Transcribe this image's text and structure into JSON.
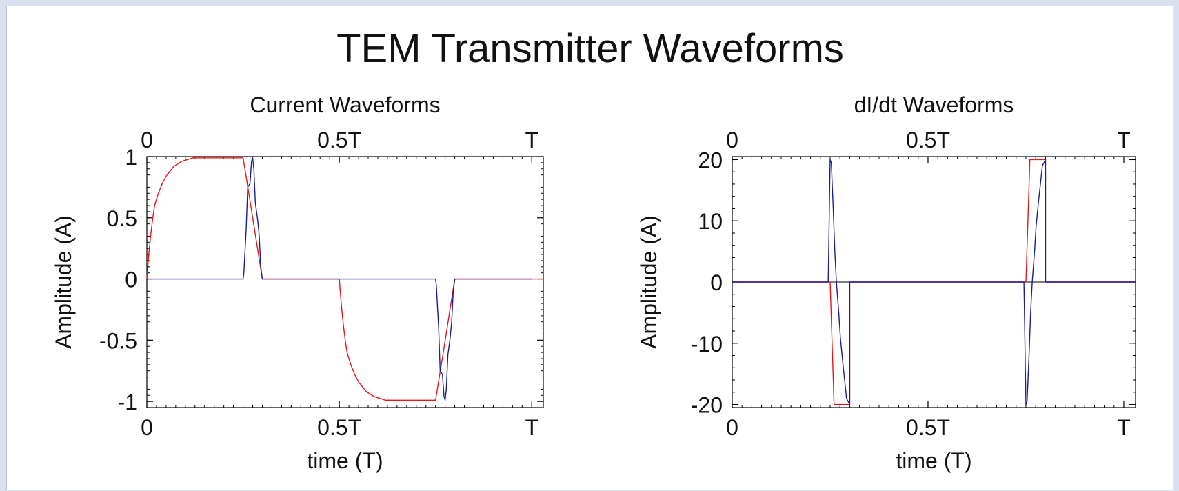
{
  "figure_title": "TEM Transmitter Waveforms",
  "colors": {
    "series_red": "#e8141b",
    "series_blue": "#1c1f8f",
    "axis": "#000000",
    "background": "#ffffff",
    "page": "#d9e1ee"
  },
  "chart_data": [
    {
      "type": "line",
      "title": "Current Waveforms",
      "xlabel": "time (T)",
      "ylabel": "Amplitude (A)",
      "xlim": [
        0,
        1.03
      ],
      "ylim": [
        -1.05,
        1.0
      ],
      "grid": false,
      "x_ticks": [
        {
          "value": 0,
          "label": "0"
        },
        {
          "value": 0.5,
          "label": "0.5T"
        },
        {
          "value": 1,
          "label": "T"
        }
      ],
      "y_ticks": [
        {
          "value": 1,
          "label": "1"
        },
        {
          "value": 0.5,
          "label": "0.5"
        },
        {
          "value": 0,
          "label": "0"
        },
        {
          "value": -0.5,
          "label": "-0.5"
        },
        {
          "value": -1,
          "label": "-1"
        }
      ],
      "series": [
        {
          "color": "#e8141b",
          "x": [
            0,
            0.005,
            0.01,
            0.015,
            0.02,
            0.03,
            0.04,
            0.05,
            0.06,
            0.07,
            0.08,
            0.09,
            0.1,
            0.11,
            0.12,
            0.25,
            0.27,
            0.29,
            0.3,
            0.5,
            0.505,
            0.51,
            0.515,
            0.52,
            0.53,
            0.54,
            0.55,
            0.56,
            0.57,
            0.58,
            0.59,
            0.6,
            0.61,
            0.62,
            0.75,
            0.77,
            0.79,
            0.8,
            1.03
          ],
          "y": [
            0,
            0.2,
            0.36,
            0.49,
            0.6,
            0.7,
            0.78,
            0.84,
            0.88,
            0.92,
            0.94,
            0.96,
            0.97,
            0.98,
            0.99,
            0.99,
            0.6,
            0.2,
            0,
            0,
            -0.2,
            -0.36,
            -0.49,
            -0.6,
            -0.7,
            -0.78,
            -0.84,
            -0.88,
            -0.92,
            -0.94,
            -0.96,
            -0.97,
            -0.98,
            -0.99,
            -0.99,
            -0.6,
            -0.2,
            0,
            0
          ]
        },
        {
          "color": "#1c1f8f",
          "x": [
            0,
            0.25,
            0.252,
            0.258,
            0.262,
            0.268,
            0.272,
            0.275,
            0.278,
            0.282,
            0.288,
            0.292,
            0.296,
            0.3,
            0.75,
            0.752,
            0.758,
            0.762,
            0.768,
            0.772,
            0.775,
            0.778,
            0.782,
            0.788,
            0.792,
            0.796,
            0.8,
            1.0
          ],
          "y": [
            0,
            0,
            0.05,
            0.4,
            0.75,
            0.78,
            0.96,
            0.99,
            0.9,
            0.62,
            0.48,
            0.35,
            0.1,
            0,
            0,
            -0.05,
            -0.4,
            -0.75,
            -0.78,
            -0.96,
            -0.99,
            -0.9,
            -0.62,
            -0.48,
            -0.35,
            -0.1,
            0,
            0
          ]
        }
      ]
    },
    {
      "type": "line",
      "title": "dI/dt Waveforms",
      "xlabel": "time (T)",
      "ylabel": "Amplitude (A)",
      "xlim": [
        0,
        1.03
      ],
      "ylim": [
        -20.5,
        20.5
      ],
      "grid": false,
      "x_ticks": [
        {
          "value": 0,
          "label": "0"
        },
        {
          "value": 0.5,
          "label": "0.5T"
        },
        {
          "value": 1,
          "label": "T"
        }
      ],
      "y_ticks": [
        {
          "value": 20,
          "label": "20"
        },
        {
          "value": 10,
          "label": "10"
        },
        {
          "value": 0,
          "label": "0"
        },
        {
          "value": -10,
          "label": "-10"
        },
        {
          "value": -20,
          "label": "-20"
        }
      ],
      "series": [
        {
          "color": "#e8141b",
          "x": [
            0,
            0.25,
            0.26,
            0.3,
            0.3,
            0.75,
            0.76,
            0.8,
            0.8,
            1.03
          ],
          "y": [
            0,
            0,
            -20,
            -20,
            0,
            0,
            20,
            20,
            0,
            0
          ]
        },
        {
          "color": "#1c1f8f",
          "x": [
            0,
            0.245,
            0.25,
            0.253,
            0.258,
            0.262,
            0.266,
            0.272,
            0.276,
            0.282,
            0.287,
            0.292,
            0.296,
            0.3,
            0.3,
            0.745,
            0.75,
            0.753,
            0.758,
            0.762,
            0.766,
            0.772,
            0.776,
            0.782,
            0.787,
            0.792,
            0.796,
            0.8,
            0.8,
            1.03
          ],
          "y": [
            0,
            0,
            20,
            19.5,
            12,
            5,
            0,
            -5,
            -9,
            -13,
            -16,
            -19,
            -19.5,
            -20,
            0,
            0,
            -20,
            -19.5,
            -12,
            -5,
            0,
            5,
            9,
            13,
            16,
            19,
            19.5,
            20,
            0,
            0
          ]
        }
      ]
    }
  ]
}
